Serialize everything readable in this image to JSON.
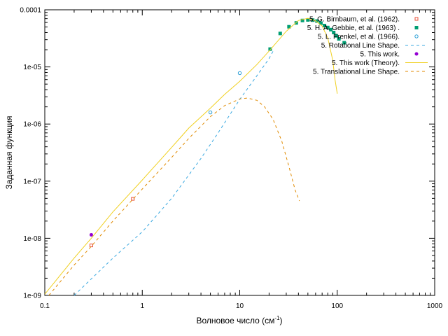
{
  "chart_data": {
    "type": "scatter",
    "xlabel": "Волновое число (см",
    "xlabel_sup": "-1",
    "xlabel_end": ")",
    "ylabel": "Заданная функция",
    "x_scale": "log",
    "y_scale": "log",
    "xlim": [
      0.1,
      1000
    ],
    "ylim": [
      1e-09,
      0.0001
    ],
    "x_ticks": [
      {
        "value": 0.1,
        "label": "0.1"
      },
      {
        "value": 1,
        "label": "1"
      },
      {
        "value": 10,
        "label": "10"
      },
      {
        "value": 100,
        "label": "100"
      },
      {
        "value": 1000,
        "label": "1000"
      }
    ],
    "y_ticks": [
      {
        "value": 1e-09,
        "label": "1e-09"
      },
      {
        "value": 1e-08,
        "label": "1e-08"
      },
      {
        "value": 1e-07,
        "label": "1e-07"
      },
      {
        "value": 1e-06,
        "label": "1e-06"
      },
      {
        "value": 1e-05,
        "label": "1e-05"
      },
      {
        "value": 0.0001,
        "label": "0.0001"
      }
    ],
    "grid": false,
    "legend_position": "top-right",
    "series": [
      {
        "name": "5. G. Birnbaum, et al. (1962).",
        "kind": "points",
        "marker": "square-open",
        "color": "#e8503a",
        "x": [
          0.3,
          0.8
        ],
        "y": [
          7.5e-09,
          4.9e-08
        ]
      },
      {
        "name": "5. H. A. Gebbie, et al. (1963) .",
        "kind": "points",
        "marker": "square-filled",
        "color": "#009e73",
        "x": [
          20.5,
          26,
          32,
          38,
          44,
          50,
          56,
          62,
          68,
          74,
          80,
          86,
          92,
          98,
          104,
          118
        ],
        "y": [
          2.05e-05,
          3.85e-05,
          5.05e-05,
          5.9e-05,
          6.5e-05,
          6.65e-05,
          6.6e-05,
          6.35e-05,
          5.85e-05,
          5.3e-05,
          4.9e-05,
          4.5e-05,
          4e-05,
          3.5e-05,
          3.1e-05,
          2.65e-05
        ]
      },
      {
        "name": "5. L. Frenkel, et al. (1966).",
        "kind": "points",
        "marker": "circle-open",
        "color": "#2a9fd6",
        "x": [
          5,
          10
        ],
        "y": [
          1.6e-06,
          7.8e-06
        ]
      },
      {
        "name": "5. Rotational Line Shape.",
        "kind": "line",
        "dash": "4,4",
        "color": "#3aa8e0",
        "x": [
          0.2,
          0.5,
          1,
          2,
          4,
          6,
          10,
          15,
          20,
          22
        ],
        "y": [
          1e-09,
          4.5e-09,
          1.3e-08,
          5e-08,
          2.5e-07,
          7e-07,
          2.7e-06,
          7e-06,
          1.4e-05,
          1.9e-05
        ]
      },
      {
        "name": "5. This work.",
        "kind": "points",
        "marker": "circle-filled",
        "color": "#9400d3",
        "x": [
          0.3
        ],
        "y": [
          1.15e-08
        ]
      },
      {
        "name": "5. This work (Theory).",
        "kind": "line",
        "dash": "",
        "color": "#f0d020",
        "x": [
          0.1,
          0.2,
          0.3,
          0.5,
          1,
          2,
          3,
          5,
          7,
          10,
          15,
          20,
          30,
          40,
          50,
          60,
          70,
          80,
          90,
          95,
          100
        ],
        "y": [
          1.05e-09,
          4.5e-09,
          1e-08,
          2.9e-08,
          1.05e-07,
          3.9e-07,
          8.5e-07,
          1.9e-06,
          3.3e-06,
          5.6e-06,
          1.1e-05,
          1.9e-05,
          4.2e-05,
          6.5e-05,
          7.1e-05,
          6.4e-05,
          5.2e-05,
          3.2e-05,
          1.3e-05,
          6e-06,
          3.4e-06
        ]
      },
      {
        "name": "5. Translational Line Shape.",
        "kind": "line",
        "dash": "4,4",
        "color": "#e08a00",
        "x": [
          0.11,
          0.2,
          0.3,
          0.5,
          1,
          2,
          3,
          5,
          7,
          10,
          12,
          15,
          18,
          22,
          27,
          32,
          37,
          41
        ],
        "y": [
          1e-09,
          3.4e-09,
          7.2e-09,
          2e-08,
          7.3e-08,
          2.6e-07,
          5.6e-07,
          1.35e-06,
          2.1e-06,
          2.75e-06,
          2.85e-06,
          2.6e-06,
          2e-06,
          1.2e-06,
          5e-07,
          1.8e-07,
          7e-08,
          4.5e-08
        ]
      }
    ]
  }
}
